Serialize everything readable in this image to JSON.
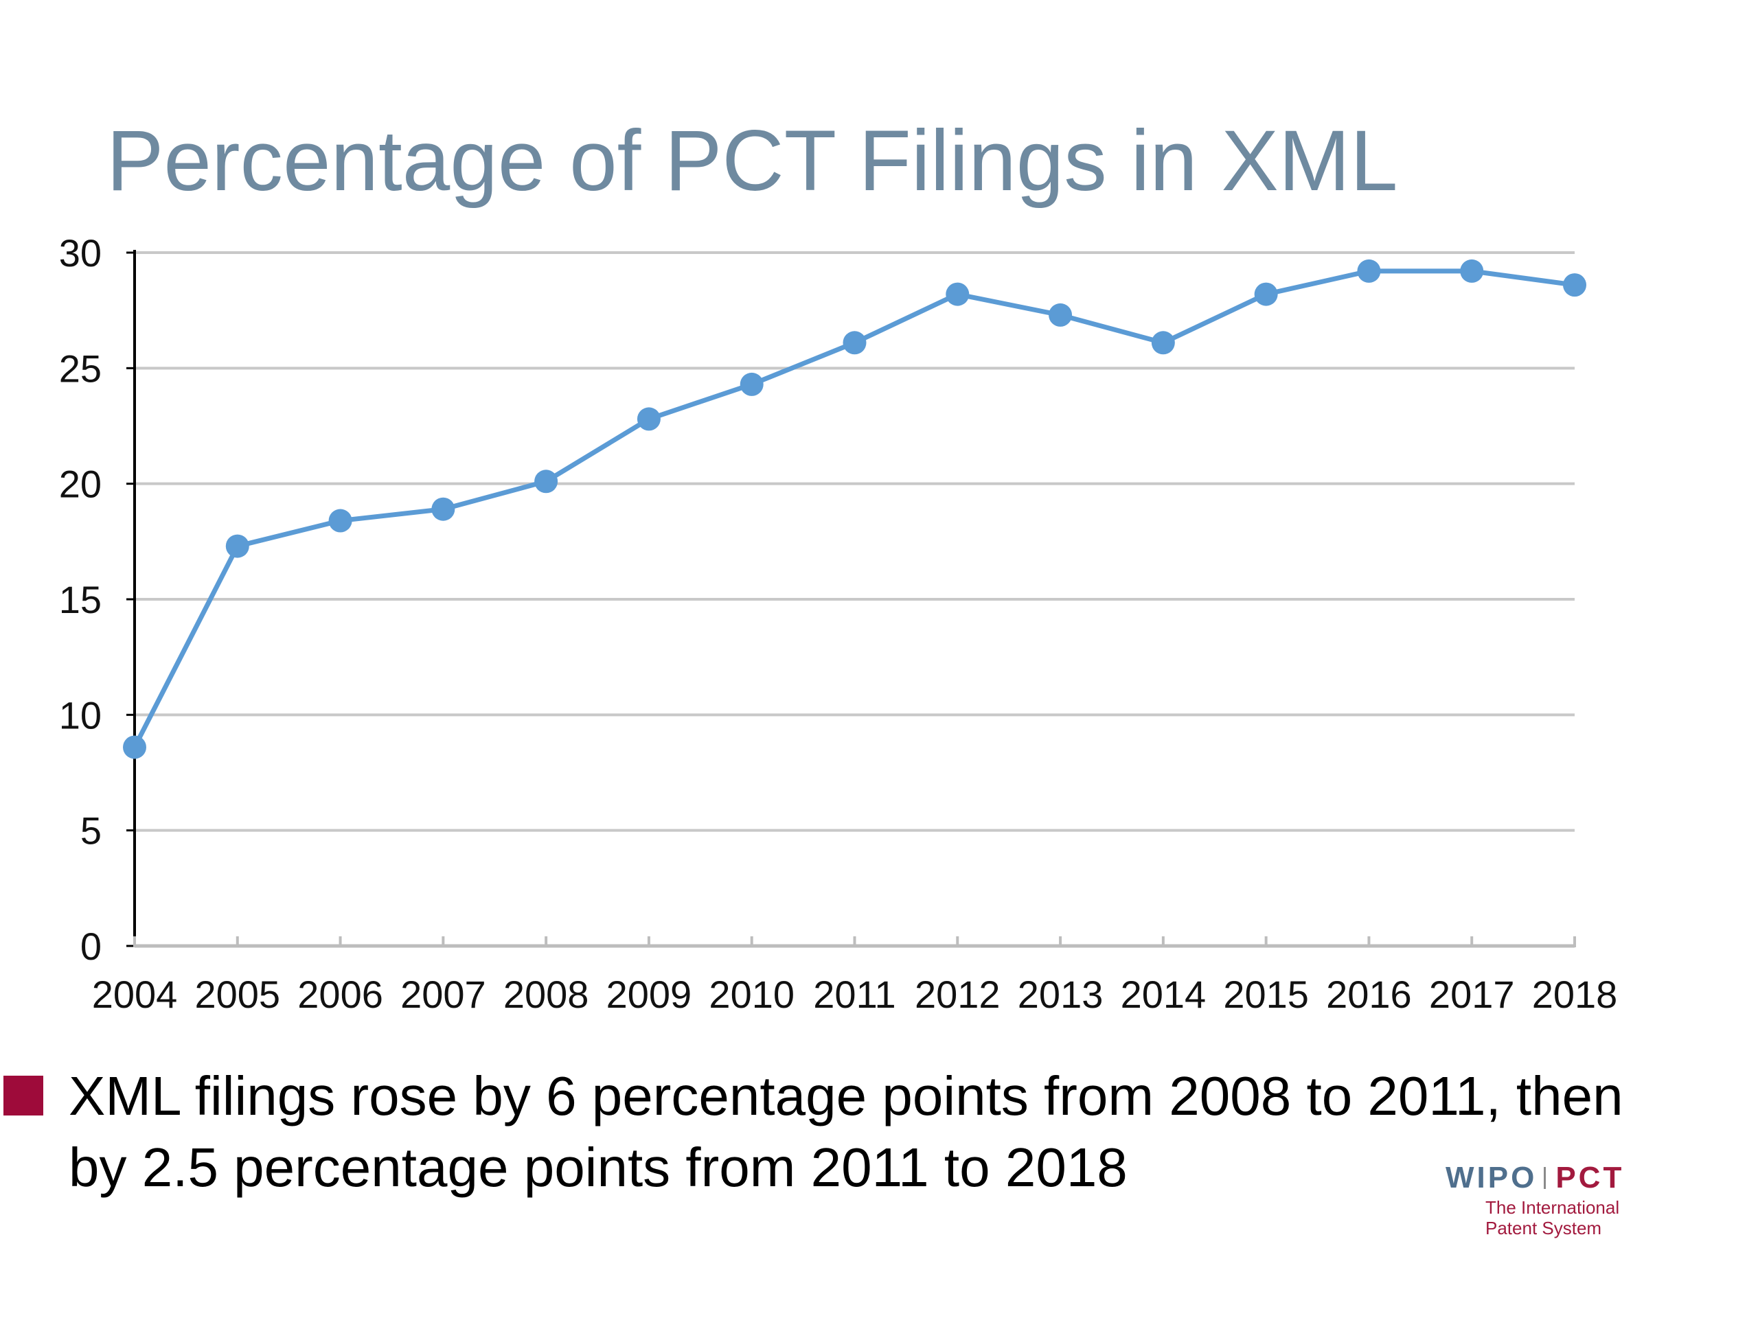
{
  "slide": {
    "title": "Percentage of PCT Filings in XML",
    "bullet": "XML filings rose by 6 percentage points from 2008 to 2011, then by 2.5 percentage points from 2011 to 2018"
  },
  "logo": {
    "left": "WIPO",
    "right": "PCT",
    "subtitle_line1": "The International",
    "subtitle_line2": "Patent System"
  },
  "colors": {
    "title": "#6f8aa0",
    "series": "#5b9bd5",
    "bullet": "#9e0b3a",
    "axis": "#000000",
    "grid": "#c8c8c8"
  },
  "chart_data": {
    "type": "line",
    "title": "Percentage of PCT Filings in XML",
    "xlabel": "",
    "ylabel": "",
    "categories": [
      "2004",
      "2005",
      "2006",
      "2007",
      "2008",
      "2009",
      "2010",
      "2011",
      "2012",
      "2013",
      "2014",
      "2015",
      "2016",
      "2017",
      "2018"
    ],
    "series": [
      {
        "values": [
          8.6,
          17.3,
          18.4,
          18.9,
          20.1,
          22.8,
          24.3,
          26.1,
          28.2,
          27.3,
          26.1,
          28.2,
          29.2,
          29.2,
          28.6
        ]
      }
    ],
    "y_ticks": [
      0,
      5,
      10,
      15,
      20,
      25,
      30
    ],
    "ylim": [
      0,
      30
    ],
    "grid": true,
    "legend": "none"
  }
}
